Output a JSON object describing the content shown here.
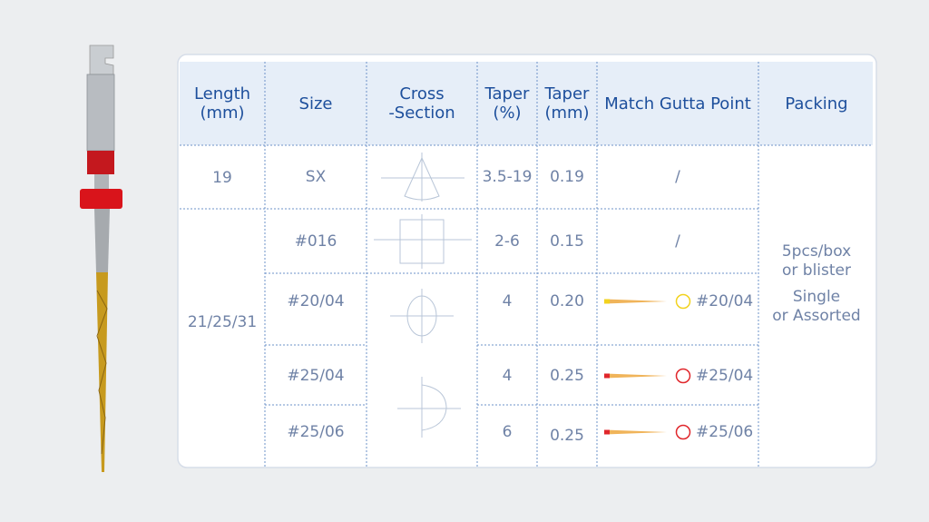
{
  "table": {
    "header": [
      [
        "Length",
        "(mm)"
      ],
      [
        "Size"
      ],
      [
        "Cross",
        "-Section"
      ],
      [
        "Taper",
        "(%)"
      ],
      [
        "Taper",
        "(mm)"
      ],
      [
        "Match Gutta Point"
      ],
      [
        "Packing"
      ]
    ],
    "length": [
      "19",
      "21/25/31"
    ],
    "rows": [
      {
        "size": "SX",
        "taper_pct": "3.5-19",
        "taper_mm": "0.19",
        "match": "/"
      },
      {
        "size": "#016",
        "taper_pct": "2-6",
        "taper_mm": "0.15",
        "match": "/"
      },
      {
        "size": "#20/04",
        "taper_pct": "4",
        "taper_mm": "0.20",
        "match": "#20/04",
        "gutta_color": "#f2d21e"
      },
      {
        "size": "#25/04",
        "taper_pct": "4",
        "taper_mm": "0.25",
        "match": "#25/04",
        "gutta_color": "#e0262b"
      },
      {
        "size": "#25/06",
        "taper_pct": "6",
        "taper_mm": "0.25",
        "match": "#25/06",
        "gutta_color": "#e0262b"
      }
    ],
    "packing": [
      "5pcs/box",
      "or blister",
      "Single",
      "or Assorted"
    ]
  }
}
